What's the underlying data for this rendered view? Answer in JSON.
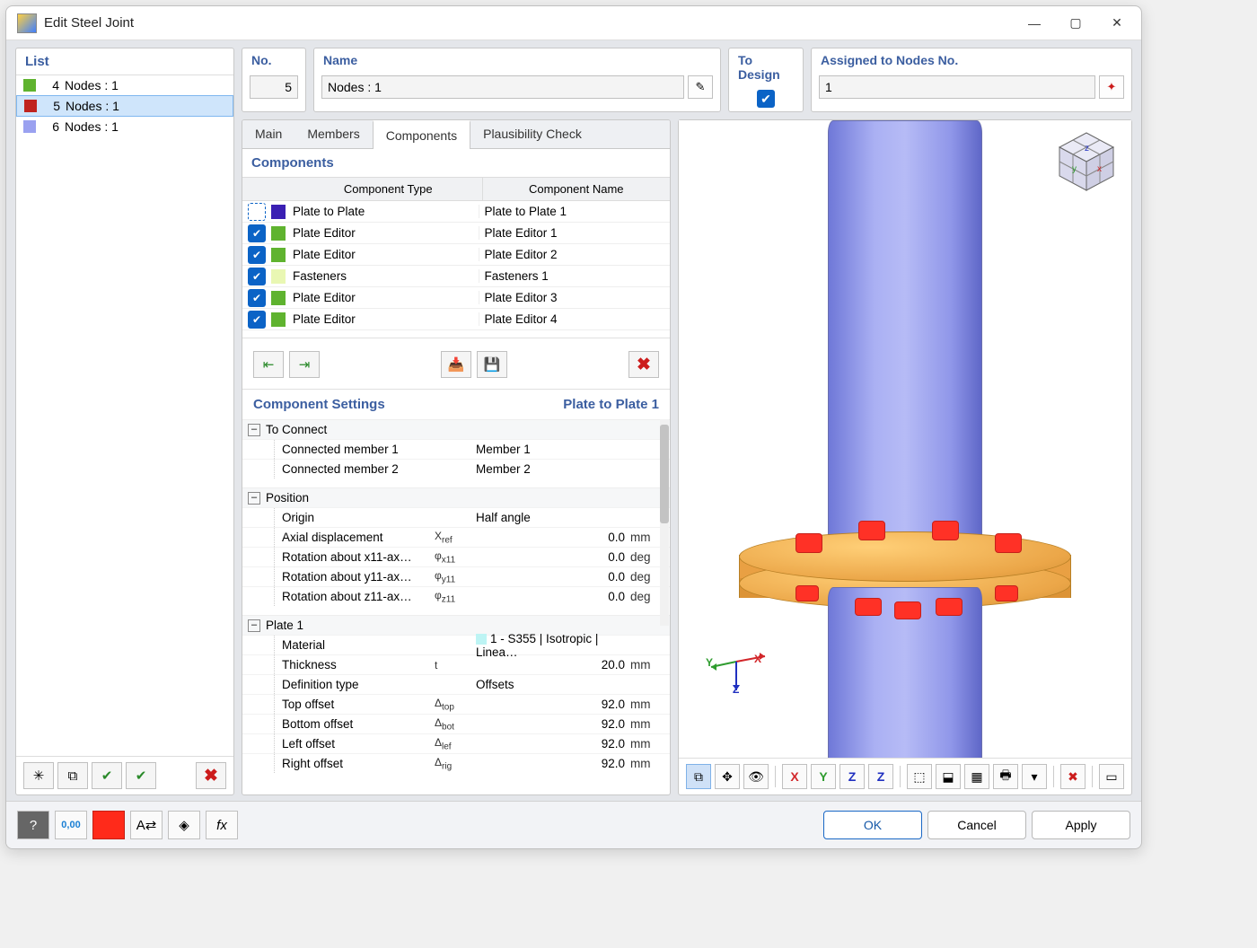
{
  "window": {
    "title": "Edit Steel Joint"
  },
  "header": {
    "no_label": "No.",
    "no_value": "5",
    "name_label": "Name",
    "name_value": "Nodes : 1",
    "todesign_label": "To Design",
    "todesign_checked": true,
    "assigned_label": "Assigned to Nodes No.",
    "assigned_value": "1"
  },
  "list": {
    "title": "List",
    "items": [
      {
        "idx": "4",
        "label": "Nodes : 1",
        "color": "#5fb32f",
        "selected": false
      },
      {
        "idx": "5",
        "label": "Nodes : 1",
        "color": "#c0231e",
        "selected": true
      },
      {
        "idx": "6",
        "label": "Nodes : 1",
        "color": "#9aa1f0",
        "selected": false
      }
    ]
  },
  "tabs": {
    "items": [
      "Main",
      "Members",
      "Components",
      "Plausibility Check"
    ],
    "active": 2
  },
  "components": {
    "title": "Components",
    "col_type": "Component Type",
    "col_name": "Component Name",
    "rows": [
      {
        "checked": "dashed",
        "color": "#3a1fb3",
        "type": "Plate to Plate",
        "name": "Plate to Plate 1"
      },
      {
        "checked": true,
        "color": "#5fb32f",
        "type": "Plate Editor",
        "name": "Plate Editor 1"
      },
      {
        "checked": true,
        "color": "#5fb32f",
        "type": "Plate Editor",
        "name": "Plate Editor 2"
      },
      {
        "checked": true,
        "color": "#e9f7b3",
        "type": "Fasteners",
        "name": "Fasteners 1"
      },
      {
        "checked": true,
        "color": "#5fb32f",
        "type": "Plate Editor",
        "name": "Plate Editor 3"
      },
      {
        "checked": true,
        "color": "#5fb32f",
        "type": "Plate Editor",
        "name": "Plate Editor 4"
      }
    ]
  },
  "settings": {
    "title": "Component Settings",
    "subtitle": "Plate to Plate 1",
    "groups": [
      {
        "label": "To Connect",
        "rows": [
          {
            "k": "Connected member 1",
            "sym": "",
            "v": "Member 1",
            "u": ""
          },
          {
            "k": "Connected member 2",
            "sym": "",
            "v": "Member 2",
            "u": ""
          }
        ]
      },
      {
        "label": "Position",
        "rows": [
          {
            "k": "Origin",
            "sym": "",
            "v": "Half angle",
            "u": ""
          },
          {
            "k": "Axial displacement",
            "sym": "Xref",
            "vn": "0.0",
            "u": "mm"
          },
          {
            "k": "Rotation about x11-ax…",
            "sym": "φx11",
            "vn": "0.0",
            "u": "deg"
          },
          {
            "k": "Rotation about y11-ax…",
            "sym": "φy11",
            "vn": "0.0",
            "u": "deg"
          },
          {
            "k": "Rotation about z11-ax…",
            "sym": "φz11",
            "vn": "0.0",
            "u": "deg"
          }
        ]
      },
      {
        "label": "Plate 1",
        "rows": [
          {
            "k": "Material",
            "sym": "",
            "v": "1 - S355 | Isotropic | Linea…",
            "u": "",
            "sw": "#bdf4f4"
          },
          {
            "k": "Thickness",
            "sym": "t",
            "vn": "20.0",
            "u": "mm"
          },
          {
            "k": "Definition type",
            "sym": "",
            "v": "Offsets",
            "u": ""
          },
          {
            "k": "Top offset",
            "sym": "Δtop",
            "vn": "92.0",
            "u": "mm"
          },
          {
            "k": "Bottom offset",
            "sym": "Δbot",
            "vn": "92.0",
            "u": "mm"
          },
          {
            "k": "Left offset",
            "sym": "Δlef",
            "vn": "92.0",
            "u": "mm"
          },
          {
            "k": "Right offset",
            "sym": "Δrig",
            "vn": "92.0",
            "u": "mm"
          }
        ]
      }
    ]
  },
  "viewer": {
    "axes": {
      "x": "X",
      "y": "Y",
      "z": "Z"
    },
    "nav_cube_face": {
      "x": "x",
      "y": "y",
      "z": "z"
    },
    "colors": {
      "column": "#8b92e6",
      "flange": "#efa84c",
      "bolt": "#ff3126",
      "x": "#d2262a",
      "y": "#2f9c2f",
      "z": "#2030c0"
    }
  },
  "viewer_toolbar_icons": [
    "⧉",
    "✥",
    "👁",
    "|",
    "X",
    "Y",
    "Z",
    "Z±",
    "|",
    "⬚",
    "⬓",
    "▦",
    "🖶",
    "▾",
    "|",
    "✖",
    "|",
    "▭"
  ],
  "footer": {
    "ok": "OK",
    "cancel": "Cancel",
    "apply": "Apply"
  }
}
